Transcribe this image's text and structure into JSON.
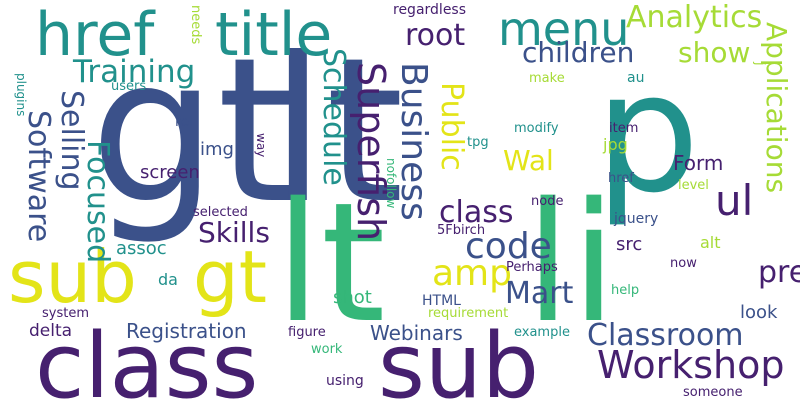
{
  "palette": {
    "purple": "#46206f",
    "blue": "#3b518a",
    "teal": "#21918c",
    "green": "#35b779",
    "lime": "#a6db36",
    "yellow": "#e3e418"
  },
  "words": [
    {
      "text": "gt",
      "color": "#3b518a"
    },
    {
      "text": "lt",
      "color": "#3b518a"
    },
    {
      "text": "p",
      "color": "#21918c"
    },
    {
      "text": "li",
      "color": "#35b779"
    },
    {
      "text": "lt",
      "color": "#35b779"
    },
    {
      "text": "class",
      "color": "#46206f"
    },
    {
      "text": "sub",
      "color": "#46206f"
    },
    {
      "text": "sub",
      "color": "#e3e418"
    },
    {
      "text": "gt",
      "color": "#e3e418"
    },
    {
      "text": "href",
      "color": "#21918c"
    },
    {
      "text": "title",
      "color": "#21918c"
    },
    {
      "text": "menu",
      "color": "#21918c"
    },
    {
      "text": "Analytics",
      "color": "#a6db36"
    },
    {
      "text": "root",
      "color": "#46206f"
    },
    {
      "text": "children",
      "color": "#3b518a"
    },
    {
      "text": "show",
      "color": "#a6db36"
    },
    {
      "text": "Training",
      "color": "#21918c"
    },
    {
      "text": "Applications",
      "color": "#a6db36"
    },
    {
      "text": "Superfish",
      "color": "#46206f"
    },
    {
      "text": "Business",
      "color": "#3b518a"
    },
    {
      "text": "Schedule",
      "color": "#21918c"
    },
    {
      "text": "Public",
      "color": "#e3e418"
    },
    {
      "text": "Software",
      "color": "#3b518a"
    },
    {
      "text": "Selling",
      "color": "#3b518a"
    },
    {
      "text": "Focused",
      "color": "#21918c"
    },
    {
      "text": "Wal",
      "color": "#e3e418"
    },
    {
      "text": "ul",
      "color": "#46206f"
    },
    {
      "text": "class",
      "color": "#46206f"
    },
    {
      "text": "code",
      "color": "#3b518a"
    },
    {
      "text": "amp",
      "color": "#e3e418"
    },
    {
      "text": "Mart",
      "color": "#3b518a"
    },
    {
      "text": "pre",
      "color": "#46206f"
    },
    {
      "text": "Skills",
      "color": "#46206f"
    },
    {
      "text": "Workshop",
      "color": "#46206f"
    },
    {
      "text": "Classroom",
      "color": "#3b518a"
    },
    {
      "text": "Registration",
      "color": "#3b518a"
    },
    {
      "text": "Webinars",
      "color": "#3b518a"
    },
    {
      "text": "Form",
      "color": "#46206f"
    },
    {
      "text": "img",
      "color": "#3b518a"
    },
    {
      "text": "screen",
      "color": "#46206f"
    },
    {
      "text": "jpg",
      "color": "#a6db36"
    },
    {
      "text": "src",
      "color": "#46206f"
    },
    {
      "text": "alt",
      "color": "#a6db36"
    },
    {
      "text": "look",
      "color": "#3b518a"
    },
    {
      "text": "shot",
      "color": "#35b779"
    },
    {
      "text": "da",
      "color": "#21918c"
    },
    {
      "text": "assoc",
      "color": "#21918c"
    },
    {
      "text": "delta",
      "color": "#46206f"
    },
    {
      "text": "regardless",
      "color": "#46206f"
    },
    {
      "text": "needs",
      "color": "#a6db36"
    },
    {
      "text": "plugins",
      "color": "#21918c"
    },
    {
      "text": "users",
      "color": "#21918c"
    },
    {
      "text": "rel",
      "color": "#3b518a"
    },
    {
      "text": "way",
      "color": "#46206f"
    },
    {
      "text": "make",
      "color": "#a6db36"
    },
    {
      "text": "au",
      "color": "#21918c"
    },
    {
      "text": "j",
      "color": "#a6db36"
    },
    {
      "text": "tpg",
      "color": "#21918c"
    },
    {
      "text": "modify",
      "color": "#21918c"
    },
    {
      "text": "item",
      "color": "#46206f"
    },
    {
      "text": "nofollow",
      "color": "#35b779"
    },
    {
      "text": "href",
      "color": "#3b518a"
    },
    {
      "text": "level",
      "color": "#a6db36"
    },
    {
      "text": "node",
      "color": "#46206f"
    },
    {
      "text": "selected",
      "color": "#46206f"
    },
    {
      "text": "5Fbirch",
      "color": "#46206f"
    },
    {
      "text": "jquery",
      "color": "#3b518a"
    },
    {
      "text": "now",
      "color": "#46206f"
    },
    {
      "text": "Perhaps",
      "color": "#46206f"
    },
    {
      "text": "HTML",
      "color": "#3b518a"
    },
    {
      "text": "requirement",
      "color": "#a6db36"
    },
    {
      "text": "help",
      "color": "#35b779"
    },
    {
      "text": "system",
      "color": "#46206f"
    },
    {
      "text": "figure",
      "color": "#46206f"
    },
    {
      "text": "work",
      "color": "#35b779"
    },
    {
      "text": "using",
      "color": "#46206f"
    },
    {
      "text": "example",
      "color": "#21918c"
    },
    {
      "text": "someone",
      "color": "#46206f"
    }
  ]
}
